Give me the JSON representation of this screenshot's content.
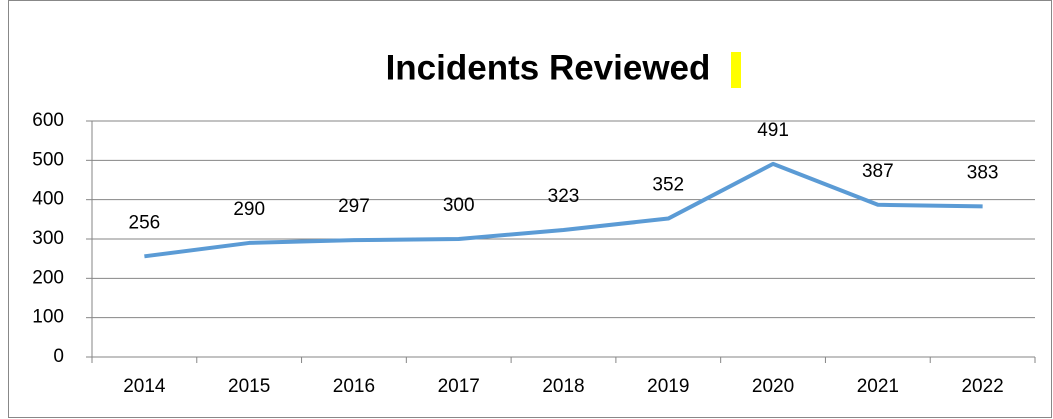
{
  "chart_data": {
    "type": "line",
    "title": "Incidents Reviewed",
    "categories": [
      "2014",
      "2015",
      "2016",
      "2017",
      "2018",
      "2019",
      "2020",
      "2021",
      "2022"
    ],
    "series": [
      {
        "name": "Incidents Reviewed",
        "color": "#5b9bd5",
        "values": [
          256,
          290,
          297,
          300,
          323,
          352,
          491,
          387,
          383
        ]
      }
    ],
    "ylim": [
      0,
      600
    ],
    "yticks": [
      0,
      100,
      200,
      300,
      400,
      500,
      600
    ],
    "grid": true,
    "data_labels": true
  }
}
